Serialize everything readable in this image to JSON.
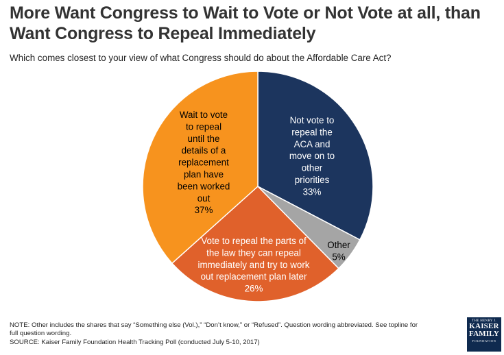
{
  "title": "More Want Congress to Wait to Vote or Not Vote at all, than Want Congress to Repeal Immediately",
  "subtitle": "Which comes closest to your view of what Congress should do about the Affordable Care Act?",
  "chart_data": {
    "type": "pie",
    "title": "More Want Congress to Wait to Vote or Not Vote at all, than Want Congress to Repeal Immediately",
    "subtitle": "Which comes closest to your view of what Congress should do about the Affordable Care Act?",
    "slices": [
      {
        "label": "Not vote to repeal the ACA and move on to other priorities",
        "value": 33,
        "value_label": "33%",
        "color": "#1c355e"
      },
      {
        "label": "Other",
        "value": 5,
        "value_label": "5%",
        "color": "#a5a5a5"
      },
      {
        "label": "Vote to repeal the parts of the law they can repeal immediately and try to work out replacement plan later",
        "value": 26,
        "value_label": "26%",
        "color": "#e0612b"
      },
      {
        "label": "Wait to vote to repeal until the details of a replacement plan have been worked out",
        "value": 37,
        "value_label": "37%",
        "color": "#f7931e"
      }
    ],
    "label_lines": [
      [
        "Not vote to",
        "repeal the",
        "ACA and",
        "move on to",
        "other",
        "priorities",
        "33%"
      ],
      [
        "Other",
        "5%"
      ],
      [
        "Vote to repeal the parts of",
        "the law they can repeal",
        "immediately and try to work",
        "out replacement plan later",
        "26%"
      ],
      [
        "Wait to vote",
        "to repeal",
        "until the",
        "details of a",
        "replacement",
        "plan have",
        "been worked",
        "out",
        "37%"
      ]
    ],
    "label_colors": [
      "#ffffff",
      "#000000",
      "#ffffff",
      "#000000"
    ]
  },
  "note_lines": [
    "NOTE: Other includes the shares that say “Something else (Vol.),” “Don’t know,” or “Refused”. Question wording abbreviated. See topline for",
    "full question wording.",
    "SOURCE: Kaiser Family Foundation Health Tracking Poll (conducted July 5-10, 2017)"
  ],
  "logo": {
    "line1": "THE HENRY J.",
    "line2": "KAISER",
    "line3": "FAMILY",
    "line4": "FOUNDATION"
  }
}
